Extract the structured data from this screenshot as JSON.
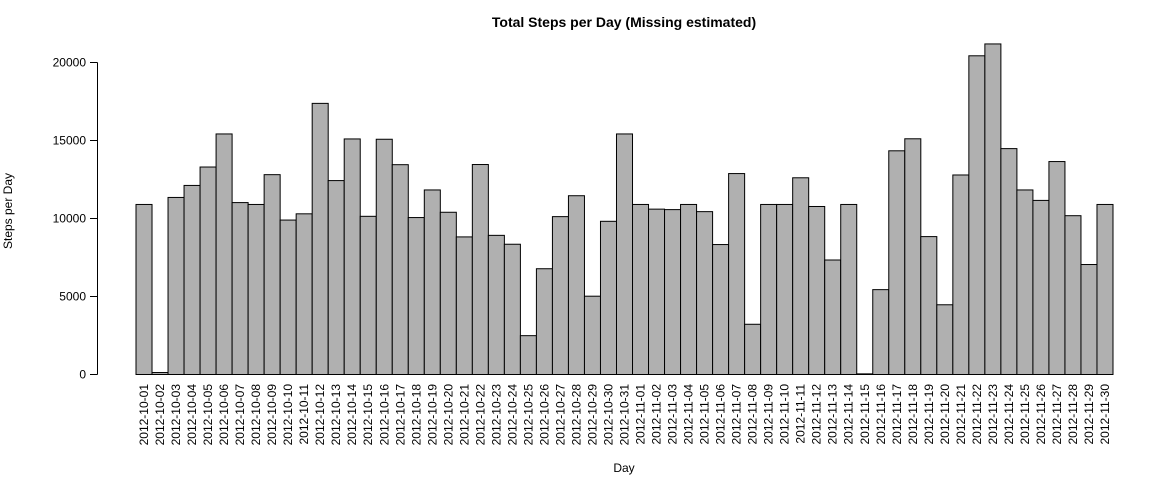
{
  "chart_data": {
    "type": "bar",
    "title": "Total Steps per Day (Missing estimated)",
    "xlabel": "Day",
    "ylabel": "Steps per Day",
    "ylim": [
      0,
      20000
    ],
    "yticks": [
      0,
      5000,
      10000,
      15000,
      20000
    ],
    "bar_color": "#b0b0b0",
    "categories": [
      "2012-10-01",
      "2012-10-02",
      "2012-10-03",
      "2012-10-04",
      "2012-10-05",
      "2012-10-06",
      "2012-10-07",
      "2012-10-08",
      "2012-10-09",
      "2012-10-10",
      "2012-10-11",
      "2012-10-12",
      "2012-10-13",
      "2012-10-14",
      "2012-10-15",
      "2012-10-16",
      "2012-10-17",
      "2012-10-18",
      "2012-10-19",
      "2012-10-20",
      "2012-10-21",
      "2012-10-22",
      "2012-10-23",
      "2012-10-24",
      "2012-10-25",
      "2012-10-26",
      "2012-10-27",
      "2012-10-28",
      "2012-10-29",
      "2012-10-30",
      "2012-10-31",
      "2012-11-01",
      "2012-11-02",
      "2012-11-03",
      "2012-11-04",
      "2012-11-05",
      "2012-11-06",
      "2012-11-07",
      "2012-11-08",
      "2012-11-09",
      "2012-11-10",
      "2012-11-11",
      "2012-11-12",
      "2012-11-13",
      "2012-11-14",
      "2012-11-15",
      "2012-11-16",
      "2012-11-17",
      "2012-11-18",
      "2012-11-19",
      "2012-11-20",
      "2012-11-21",
      "2012-11-22",
      "2012-11-23",
      "2012-11-24",
      "2012-11-25",
      "2012-11-26",
      "2012-11-27",
      "2012-11-28",
      "2012-11-29",
      "2012-11-30"
    ],
    "values": [
      10900,
      126,
      11350,
      12120,
      13300,
      15420,
      11020,
      10900,
      12810,
      9900,
      10300,
      17380,
      12430,
      15100,
      10140,
      15080,
      13450,
      10060,
      11830,
      10400,
      8820,
      13460,
      8920,
      8350,
      2490,
      6780,
      10120,
      11460,
      5020,
      9820,
      15420,
      10900,
      10600,
      10570,
      10900,
      10440,
      8330,
      12880,
      3220,
      10900,
      10900,
      12610,
      10770,
      7340,
      10900,
      41,
      5440,
      14340,
      15110,
      8840,
      4470,
      12790,
      20430,
      21190,
      14480,
      11830,
      11160,
      13650,
      10180,
      7050,
      10900
    ]
  }
}
